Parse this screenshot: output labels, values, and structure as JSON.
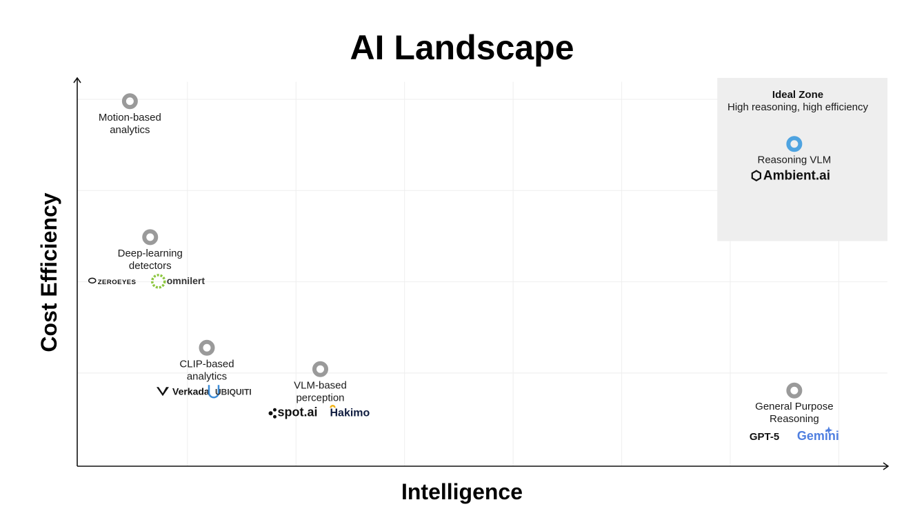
{
  "chart_data": {
    "type": "scatter",
    "title": "AI Landscape",
    "xlabel": "Intelligence",
    "ylabel": "Cost Efficiency",
    "xlim": [
      0,
      10
    ],
    "ylim": [
      0,
      10
    ],
    "grid": true,
    "ideal_zone": {
      "title": "Ideal Zone",
      "subtitle": "High reasoning, high efficiency",
      "x_range": [
        7.9,
        10
      ],
      "y_range": [
        5.8,
        10
      ]
    },
    "points": [
      {
        "x": 0.65,
        "y": 9.4,
        "label": [
          "Motion-based",
          "analytics"
        ],
        "logos": [],
        "highlight": false
      },
      {
        "x": 0.9,
        "y": 5.9,
        "label": [
          "Deep-learning",
          "detectors"
        ],
        "logos": [
          "ZEROEYES",
          "omnilert"
        ],
        "highlight": false
      },
      {
        "x": 1.6,
        "y": 3.05,
        "label": [
          "CLIP-based",
          "analytics"
        ],
        "logos": [
          "Verkada",
          "UBIQUITI"
        ],
        "highlight": false
      },
      {
        "x": 3.0,
        "y": 2.5,
        "label": [
          "VLM-based",
          "perception"
        ],
        "logos": [
          "spot.ai",
          "Hakimo"
        ],
        "highlight": false
      },
      {
        "x": 8.85,
        "y": 1.95,
        "label": [
          "General Purpose",
          "Reasoning"
        ],
        "logos": [
          "GPT-5",
          "Gemini"
        ],
        "highlight": false
      },
      {
        "x": 8.85,
        "y": 8.3,
        "label": [
          "Reasoning VLM"
        ],
        "logos": [
          "Ambient.ai"
        ],
        "highlight": true
      }
    ]
  },
  "colors": {
    "point": "#9a9a9a",
    "highlight_point": "#4ea3e0",
    "zone_fill": "#eeeeee",
    "grid": "#eeeeee",
    "axis": "#111111",
    "gemini": "#4f7fe0",
    "hakimo_accent": "#f2b418",
    "omnilert": "#8cc63f"
  }
}
